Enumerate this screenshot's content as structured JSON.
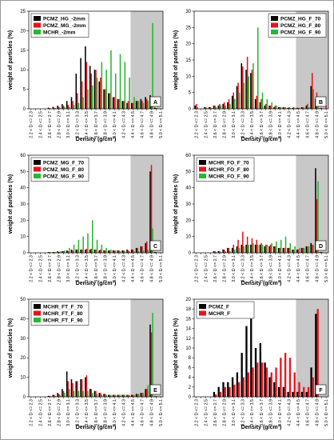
{
  "chart_data": [
    {
      "type": "bar",
      "panel_label": "A",
      "legend_position": "upper left",
      "shade_from_category": "4.4 < D <= 4.5",
      "xlabel": "Density (g/cm³)",
      "ylabel": "weight of particles (%)",
      "categories": [
        "2.2 < D <= 2.3",
        null,
        "2.4 < D <= 2.5",
        null,
        "2.6 < D <= 2.7",
        null,
        "2.8 < D <= 2.9",
        null,
        "3.0 < D <= 3.1",
        null,
        "3.2 < D <= 3.3",
        null,
        "3.4 < D <= 3.5",
        null,
        "3.6 < D <= 3.7",
        null,
        "3.8 < D <= 3.9",
        null,
        "4.0 < D <= 4.1",
        null,
        "4.2 < D <= 4.3",
        null,
        "4.4 < D <= 4.5",
        null,
        "4.6 < D <= 4.7",
        null,
        "4.8 < D <= 4.9",
        null,
        "5.0 < D <= 5.1"
      ],
      "series": [
        {
          "name": "PCMZ_HG_-2mm",
          "color": "#000000",
          "values": [
            0,
            0,
            0,
            0,
            0.3,
            0.5,
            0.8,
            1.2,
            2,
            3,
            9,
            13,
            16,
            11,
            10,
            7,
            5,
            4,
            3,
            2.5,
            2,
            1.5,
            1.5,
            2,
            2.5,
            3,
            3.5,
            0.3,
            0
          ]
        },
        {
          "name": "PCMZ_MG_-2mm",
          "color": "#e8141b",
          "values": [
            0,
            0,
            0,
            0,
            0.2,
            0.3,
            0.5,
            0.8,
            1,
            2,
            4,
            7,
            12,
            9,
            10,
            8,
            5,
            4,
            3,
            2.5,
            2,
            2,
            1.5,
            2,
            2,
            2.5,
            3,
            0.2,
            0
          ]
        },
        {
          "name": "MCHR_-2mm",
          "color": "#2bb534",
          "values": [
            0,
            0,
            0,
            0,
            0.1,
            0.2,
            0.3,
            0.5,
            0.5,
            1,
            1.5,
            3,
            5,
            6,
            8,
            12,
            10,
            15,
            9,
            14,
            12,
            8,
            3,
            2,
            1.5,
            2,
            22,
            0.2,
            0
          ]
        }
      ],
      "ylim": [
        0,
        25
      ],
      "yticks": [
        0,
        5,
        10,
        15,
        20,
        25
      ]
    },
    {
      "type": "bar",
      "panel_label": "B",
      "legend_position": "upper right",
      "shade_from_category": "4.4 < D <= 4.5",
      "xlabel": "Density (g/cm³)",
      "ylabel": "weight of particles (%)",
      "categories": [
        "2.2 < D <= 2.3",
        null,
        "2.4 < D <= 2.5",
        null,
        "2.6 < D <= 2.7",
        null,
        "2.8 < D <= 2.9",
        null,
        "3.0 < D <= 3.1",
        null,
        "3.2 < D <= 3.3",
        null,
        "3.4 < D <= 3.5",
        null,
        "3.6 < D <= 3.7",
        null,
        "3.8 < D <= 3.9",
        null,
        "4.0 < D <= 4.1",
        null,
        "4.2 < D <= 4.3",
        null,
        "4.4 < D <= 4.5",
        null,
        "4.6 < D <= 4.7",
        null,
        "4.8 < D <= 4.9",
        null,
        "5.0 < D <= 5.1"
      ],
      "series": [
        {
          "name": "PCMZ_HG_F_70",
          "color": "#000000",
          "values": [
            1,
            0,
            0.5,
            0.5,
            1,
            1,
            1.5,
            2,
            4,
            7,
            14,
            12,
            11,
            3,
            2,
            1,
            1,
            0.5,
            0.5,
            0.5,
            0.3,
            0.3,
            0.3,
            0.5,
            1,
            7,
            3,
            0.2,
            0
          ]
        },
        {
          "name": "PCMZ_HG_F_80",
          "color": "#e8141b",
          "values": [
            1.5,
            0,
            0.5,
            0.5,
            1,
            1.5,
            2,
            3,
            5,
            8,
            13,
            16,
            12,
            4,
            3,
            1.5,
            1,
            1,
            0.5,
            0.5,
            0.5,
            0.5,
            0.3,
            0.5,
            1.5,
            11,
            5,
            0.3,
            1
          ]
        },
        {
          "name": "PCMZ_HG_F_90",
          "color": "#2bb534",
          "values": [
            0.5,
            0,
            0.3,
            0.3,
            0.5,
            1,
            1,
            1.5,
            3,
            5,
            8,
            10,
            14,
            25,
            5,
            3,
            2,
            1,
            0.5,
            0.5,
            0.3,
            0.3,
            0.2,
            0.3,
            0.5,
            6,
            2,
            0.1,
            0
          ]
        }
      ],
      "ylim": [
        0,
        30
      ],
      "yticks": [
        0,
        5,
        10,
        15,
        20,
        25,
        30
      ]
    },
    {
      "type": "bar",
      "panel_label": "C",
      "legend_position": "upper left",
      "shade_from_category": "4.4 < D <= 4.5",
      "xlabel": "Density (g/cm³)",
      "ylabel": "weight of particles (%)",
      "categories": [
        "2.2 < D <= 2.3",
        null,
        "2.4 < D <= 2.5",
        null,
        "2.6 < D <= 2.7",
        null,
        "2.8 < D <= 2.9",
        null,
        "3.0 < D <= 3.1",
        null,
        "3.2 < D <= 3.3",
        null,
        "3.4 < D <= 3.5",
        null,
        "3.6 < D <= 3.7",
        null,
        "3.8 < D <= 3.9",
        null,
        "4.0 < D <= 4.1",
        null,
        "4.2 < D <= 4.3",
        null,
        "4.4 < D <= 4.5",
        null,
        "4.6 < D <= 4.7",
        null,
        "4.8 < D <= 4.9",
        null,
        "5.0 < D <= 5.1"
      ],
      "series": [
        {
          "name": "PCMZ_MG_F_70",
          "color": "#000000",
          "values": [
            0,
            0,
            0,
            0,
            0.5,
            0.5,
            1,
            1,
            1.5,
            2,
            2,
            2,
            2,
            2,
            2,
            1.5,
            1.5,
            1.5,
            1.5,
            1.5,
            1.5,
            2,
            2,
            3,
            4,
            6,
            50,
            0.5,
            0
          ]
        },
        {
          "name": "PCMZ_MG_F_80",
          "color": "#e8141b",
          "values": [
            0,
            0,
            0,
            0,
            0.5,
            0.5,
            0.5,
            1,
            1,
            1.5,
            2,
            2,
            2.5,
            2.5,
            2,
            2,
            1.5,
            1.5,
            1.5,
            1.5,
            1.5,
            1.5,
            2,
            3,
            4,
            7,
            54,
            0.5,
            0
          ]
        },
        {
          "name": "PCMZ_MG_F_90",
          "color": "#2bb534",
          "values": [
            0,
            0,
            0,
            0,
            0.3,
            0.5,
            1,
            1.5,
            3,
            5,
            8,
            10,
            12,
            20,
            8,
            5,
            3,
            2,
            1.5,
            1,
            1,
            1,
            1,
            1,
            1.5,
            2,
            15,
            0.2,
            0
          ]
        }
      ],
      "ylim": [
        0,
        60
      ],
      "yticks": [
        0,
        10,
        20,
        30,
        40,
        50,
        60
      ]
    },
    {
      "type": "bar",
      "panel_label": "D",
      "legend_position": "upper left",
      "shade_from_category": "4.4 < D <= 4.5",
      "xlabel": "Density (g/cm³)",
      "ylabel": "weight of particles (%)",
      "categories": [
        "2.2 < D <= 2.3",
        null,
        "2.4 < D <= 2.5",
        null,
        "2.6 < D <= 2.7",
        null,
        "2.8 < D <= 2.9",
        null,
        "3.0 < D <= 3.1",
        null,
        "3.2 < D <= 3.3",
        null,
        "3.4 < D <= 3.5",
        null,
        "3.6 < D <= 3.7",
        null,
        "3.8 < D <= 3.9",
        null,
        "4.0 < D <= 4.1",
        null,
        "4.2 < D <= 4.3",
        null,
        "4.4 < D <= 4.5",
        null,
        "4.6 < D <= 4.7",
        null,
        "4.8 < D <= 4.9",
        null,
        "5.0 < D <= 5.1"
      ],
      "series": [
        {
          "name": "MCHR_FO_F_70",
          "color": "#000000",
          "values": [
            0,
            0,
            0,
            0,
            1,
            1,
            2,
            3,
            3,
            4,
            5,
            5,
            5,
            5,
            5,
            4,
            4,
            4,
            3,
            3,
            3,
            2,
            2,
            3,
            4,
            6,
            52,
            0.5,
            0
          ]
        },
        {
          "name": "MCHR_FO_F_80",
          "color": "#e8141b",
          "values": [
            0,
            0,
            0,
            0,
            1,
            1,
            2,
            3,
            5,
            8,
            13,
            10,
            9,
            8,
            6,
            5,
            5,
            4,
            3,
            3,
            3,
            2,
            2,
            3,
            4,
            5,
            33,
            0.5,
            0
          ]
        },
        {
          "name": "MCHR_FO_F_90",
          "color": "#2bb534",
          "values": [
            0,
            0,
            0,
            0,
            0.5,
            0.5,
            1,
            1,
            2,
            3,
            4,
            5,
            6,
            5,
            5,
            5,
            6,
            7,
            8,
            10,
            6,
            4,
            3,
            3,
            4,
            5,
            44,
            0.5,
            0
          ]
        }
      ],
      "ylim": [
        0,
        60
      ],
      "yticks": [
        0,
        10,
        20,
        30,
        40,
        50,
        60
      ]
    },
    {
      "type": "bar",
      "panel_label": "E",
      "legend_position": "upper left",
      "shade_from_category": "4.4 < D <= 4.5",
      "xlabel": "Density (g/cm³)",
      "ylabel": "weight of particles (%)",
      "categories": [
        "2.2 < D <= 2.3",
        null,
        "2.4 < D <= 2.5",
        null,
        "2.6 < D <= 2.7",
        null,
        "2.8 < D <= 2.9",
        null,
        "3.0 < D <= 3.1",
        null,
        "3.2 < D <= 3.3",
        null,
        "3.4 < D <= 3.5",
        null,
        "3.6 < D <= 3.7",
        null,
        "3.8 < D <= 3.9",
        null,
        "4.0 < D <= 4.1",
        null,
        "4.2 < D <= 4.3",
        null,
        "4.4 < D <= 4.5",
        null,
        "4.6 < D <= 4.7",
        null,
        "4.8 < D <= 4.9",
        null,
        "5.0 < D <= 5.1"
      ],
      "series": [
        {
          "name": "MCHR_FT_F_70",
          "color": "#000000",
          "values": [
            0,
            0,
            0,
            0,
            0.5,
            1,
            2,
            4,
            13,
            9,
            8,
            9,
            10,
            4,
            3,
            2,
            1.5,
            1,
            1,
            1,
            1,
            1,
            1,
            1.5,
            2,
            4,
            37,
            0.3,
            0
          ]
        },
        {
          "name": "MCHR_FT_F_80",
          "color": "#e8141b",
          "values": [
            0,
            0,
            0,
            0,
            0.5,
            1,
            1.5,
            3,
            8,
            7,
            8,
            9,
            11,
            4,
            3,
            2,
            1.5,
            1,
            1,
            1,
            1,
            1,
            1,
            1.5,
            2,
            4,
            33,
            0.3,
            0
          ]
        },
        {
          "name": "MCHR_FT_F_90",
          "color": "#2bb534",
          "values": [
            0,
            0,
            0,
            0,
            0.3,
            0.5,
            1,
            2,
            4,
            3,
            3,
            3,
            3,
            2,
            1.5,
            1,
            1,
            1,
            1,
            1,
            1,
            1,
            1,
            1.5,
            2,
            6,
            43,
            0.3,
            0
          ]
        }
      ],
      "ylim": [
        0,
        50
      ],
      "yticks": [
        0,
        10,
        20,
        30,
        40,
        50
      ]
    },
    {
      "type": "bar",
      "panel_label": "F",
      "legend_position": "upper left",
      "shade_from_category": "4.4 < D <= 4.5",
      "xlabel": "Density (g/cm³)",
      "ylabel": "weight of particles (%)",
      "categories": [
        "2.2 < D <= 2.3",
        null,
        "2.4 < D <= 2.5",
        null,
        "2.6 < D <= 2.7",
        null,
        "2.8 < D <= 2.9",
        null,
        "3.0 < D <= 3.1",
        null,
        "3.2 < D <= 3.3",
        null,
        "3.4 < D <= 3.5",
        null,
        "3.6 < D <= 3.7",
        null,
        "3.8 < D <= 3.9",
        null,
        "4.0 < D <= 4.1",
        null,
        "4.2 < D <= 4.3",
        null,
        "4.4 < D <= 4.5",
        null,
        "4.6 < D <= 4.7",
        null,
        "4.8 < D <= 4.9",
        null,
        "5.0 < D <= 5.1"
      ],
      "series": [
        {
          "name": "PCMZ_F",
          "color": "#000000",
          "values": [
            0,
            0,
            0,
            0,
            1,
            2,
            3,
            3,
            4,
            5,
            9,
            14.5,
            16,
            10,
            11,
            7,
            4,
            3,
            2,
            2,
            1,
            1,
            1,
            1,
            1,
            6,
            17,
            0,
            0
          ]
        },
        {
          "name": "MCHR_F",
          "color": "#e8141b",
          "values": [
            0,
            0,
            0,
            0,
            0.5,
            1,
            2,
            2,
            2.5,
            3,
            4,
            5,
            6,
            7,
            7,
            6,
            5,
            6,
            8,
            9,
            8,
            5,
            3,
            2,
            2,
            4,
            18,
            0,
            0
          ]
        }
      ],
      "ylim": [
        0,
        20
      ],
      "yticks": [
        0,
        2,
        4,
        6,
        8,
        10,
        12,
        14,
        16,
        18,
        20
      ]
    }
  ]
}
